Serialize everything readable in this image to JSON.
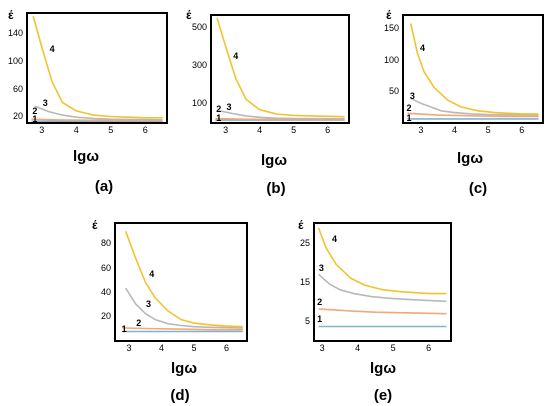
{
  "chart_data": [
    {
      "type": "line",
      "panel_label": "(a)",
      "ylabel": "έ",
      "xlabel": "lgω",
      "xlim": [
        2.6,
        6.6
      ],
      "ylim": [
        12,
        168
      ],
      "x_ticks": [
        "3",
        "4",
        "5",
        "6"
      ],
      "y_ticks": [
        "20",
        "60",
        "100",
        "140"
      ],
      "colors": {
        "1": "#7fb3d5",
        "2": "#f0a878",
        "3": "#b8b8b8",
        "4": "#f2c230"
      },
      "series": [
        {
          "name": "1",
          "x": [
            2.7,
            3.5,
            4.5,
            5.5,
            6.5
          ],
          "y": [
            13,
            13,
            13,
            13,
            13
          ]
        },
        {
          "name": "2",
          "x": [
            2.7,
            3.5,
            4.5,
            5.5,
            6.5
          ],
          "y": [
            16,
            15,
            14.5,
            14,
            14
          ]
        },
        {
          "name": "3",
          "x": [
            2.8,
            3.2,
            3.6,
            4.0,
            4.5,
            5.0,
            6.5
          ],
          "y": [
            35,
            27,
            22,
            19,
            17,
            16,
            15
          ]
        },
        {
          "name": "4",
          "x": [
            2.75,
            3.0,
            3.3,
            3.6,
            4.0,
            4.5,
            5.0,
            6.0,
            6.5
          ],
          "y": [
            165,
            120,
            70,
            40,
            28,
            22,
            20,
            18,
            18
          ]
        }
      ],
      "curve_labels": [
        {
          "text": "1",
          "x": 2.8,
          "y": 16
        },
        {
          "text": "2",
          "x": 2.8,
          "y": 28
        },
        {
          "text": "3",
          "x": 3.1,
          "y": 40
        },
        {
          "text": "4",
          "x": 3.3,
          "y": 118
        }
      ]
    },
    {
      "type": "line",
      "panel_label": "(b)",
      "ylabel": "έ",
      "xlabel": "lgω",
      "xlim": [
        2.6,
        6.6
      ],
      "ylim": [
        0,
        560
      ],
      "x_ticks": [
        "3",
        "4",
        "5",
        "6"
      ],
      "y_ticks": [
        "100",
        "300",
        "500"
      ],
      "colors": {
        "1": "#7fb3d5",
        "2": "#f0a878",
        "3": "#b8b8b8",
        "4": "#f2c230"
      },
      "series": [
        {
          "name": "1",
          "x": [
            2.7,
            3.5,
            4.5,
            5.5,
            6.5
          ],
          "y": [
            10,
            10,
            10,
            10,
            10
          ]
        },
        {
          "name": "2",
          "x": [
            2.7,
            3.5,
            4.5,
            5.5,
            6.5
          ],
          "y": [
            18,
            15,
            13,
            12,
            12
          ]
        },
        {
          "name": "3",
          "x": [
            2.8,
            3.2,
            3.6,
            4.0,
            4.5,
            5.0,
            6.5
          ],
          "y": [
            60,
            45,
            32,
            25,
            20,
            18,
            17
          ]
        },
        {
          "name": "4",
          "x": [
            2.75,
            3.0,
            3.3,
            3.6,
            4.0,
            4.5,
            5.0,
            6.0,
            6.5
          ],
          "y": [
            550,
            400,
            230,
            120,
            65,
            42,
            35,
            30,
            28
          ]
        }
      ],
      "curve_labels": [
        {
          "text": "1",
          "x": 2.8,
          "y": 22
        },
        {
          "text": "2",
          "x": 2.8,
          "y": 70
        },
        {
          "text": "3",
          "x": 3.1,
          "y": 80
        },
        {
          "text": "4",
          "x": 3.3,
          "y": 350
        }
      ]
    },
    {
      "type": "line",
      "panel_label": "(c)",
      "ylabel": "έ",
      "xlabel": "lgω",
      "xlim": [
        2.5,
        6.6
      ],
      "ylim": [
        0,
        170
      ],
      "x_ticks": [
        "3",
        "4",
        "5",
        "6"
      ],
      "y_ticks": [
        "50",
        "100",
        "150"
      ],
      "colors": {
        "1": "#7fb3d5",
        "2": "#f0a878",
        "3": "#b8b8b8",
        "4": "#f2c230"
      },
      "series": [
        {
          "name": "1",
          "x": [
            2.6,
            3.5,
            4.5,
            5.5,
            6.5
          ],
          "y": [
            5,
            5,
            5,
            5,
            5
          ]
        },
        {
          "name": "2",
          "x": [
            2.6,
            3.5,
            4.5,
            5.5,
            6.5
          ],
          "y": [
            14,
            11,
            10,
            9,
            9
          ]
        },
        {
          "name": "3",
          "x": [
            2.7,
            3.0,
            3.3,
            3.6,
            4.0,
            4.5,
            5.0,
            6.5
          ],
          "y": [
            38,
            30,
            24,
            18,
            15,
            13,
            12,
            11
          ]
        },
        {
          "name": "4",
          "x": [
            2.7,
            2.9,
            3.1,
            3.4,
            3.8,
            4.2,
            4.7,
            5.2,
            6.0,
            6.5
          ],
          "y": [
            158,
            110,
            80,
            55,
            35,
            24,
            18,
            15,
            13,
            13
          ]
        }
      ],
      "curve_labels": [
        {
          "text": "1",
          "x": 2.65,
          "y": 7
        },
        {
          "text": "2",
          "x": 2.65,
          "y": 22
        },
        {
          "text": "3",
          "x": 2.75,
          "y": 42
        },
        {
          "text": "4",
          "x": 3.05,
          "y": 118
        }
      ]
    },
    {
      "type": "line",
      "panel_label": "(d)",
      "ylabel": "έ",
      "xlabel": "lgω",
      "xlim": [
        2.6,
        6.6
      ],
      "ylim": [
        0,
        96
      ],
      "x_ticks": [
        "3",
        "4",
        "5",
        "6"
      ],
      "y_ticks": [
        "20",
        "40",
        "60",
        "80"
      ],
      "colors": {
        "1": "#7fb3d5",
        "2": "#f0a878",
        "3": "#b8b8b8",
        "4": "#f2c230"
      },
      "series": [
        {
          "name": "1",
          "x": [
            2.8,
            3.5,
            4.5,
            5.5,
            6.5
          ],
          "y": [
            7,
            7,
            7,
            7,
            7
          ]
        },
        {
          "name": "2",
          "x": [
            2.8,
            3.5,
            4.5,
            5.5,
            6.5
          ],
          "y": [
            10,
            9.5,
            9,
            8.5,
            8.5
          ]
        },
        {
          "name": "3",
          "x": [
            2.9,
            3.2,
            3.5,
            3.8,
            4.2,
            4.6,
            5.0,
            5.5,
            6.5
          ],
          "y": [
            43,
            30,
            22,
            17,
            13.5,
            12,
            11,
            10.5,
            10
          ]
        },
        {
          "name": "4",
          "x": [
            2.9,
            3.2,
            3.5,
            3.8,
            4.2,
            4.6,
            5.0,
            5.5,
            6.0,
            6.5
          ],
          "y": [
            90,
            68,
            48,
            35,
            24,
            17,
            14,
            12.5,
            11.5,
            11
          ]
        }
      ],
      "curve_labels": [
        {
          "text": "1",
          "x": 2.85,
          "y": 9
        },
        {
          "text": "2",
          "x": 3.3,
          "y": 14
        },
        {
          "text": "3",
          "x": 3.6,
          "y": 30
        },
        {
          "text": "4",
          "x": 3.7,
          "y": 55
        }
      ]
    },
    {
      "type": "line",
      "panel_label": "(e)",
      "ylabel": "έ",
      "xlabel": "lgω",
      "xlim": [
        2.8,
        6.6
      ],
      "ylim": [
        0,
        30
      ],
      "x_ticks": [
        "3",
        "4",
        "5",
        "6"
      ],
      "y_ticks": [
        "5",
        "15",
        "25"
      ],
      "colors": {
        "1": "#7fb3d5",
        "2": "#f0a878",
        "3": "#b8b8b8",
        "4": "#f2c230"
      },
      "series": [
        {
          "name": "1",
          "x": [
            2.9,
            3.5,
            4.5,
            5.5,
            6.5
          ],
          "y": [
            3.5,
            3.5,
            3.5,
            3.5,
            3.5
          ]
        },
        {
          "name": "2",
          "x": [
            2.9,
            3.3,
            3.8,
            4.5,
            5.5,
            6.5
          ],
          "y": [
            8,
            7.8,
            7.5,
            7.2,
            7,
            6.8
          ]
        },
        {
          "name": "3",
          "x": [
            2.9,
            3.2,
            3.5,
            3.9,
            4.4,
            5.0,
            5.8,
            6.5
          ],
          "y": [
            17,
            14.5,
            13,
            12,
            11.2,
            10.7,
            10.3,
            10
          ]
        },
        {
          "name": "4",
          "x": [
            2.9,
            3.1,
            3.4,
            3.8,
            4.2,
            4.7,
            5.2,
            6.0,
            6.5
          ],
          "y": [
            29,
            24,
            19.5,
            16,
            14.2,
            13,
            12.5,
            12,
            12
          ]
        }
      ],
      "curve_labels": [
        {
          "text": "1",
          "x": 2.93,
          "y": 5.5
        },
        {
          "text": "2",
          "x": 2.93,
          "y": 9.7
        },
        {
          "text": "3",
          "x": 2.98,
          "y": 18.5
        },
        {
          "text": "4",
          "x": 3.35,
          "y": 26
        }
      ]
    }
  ]
}
